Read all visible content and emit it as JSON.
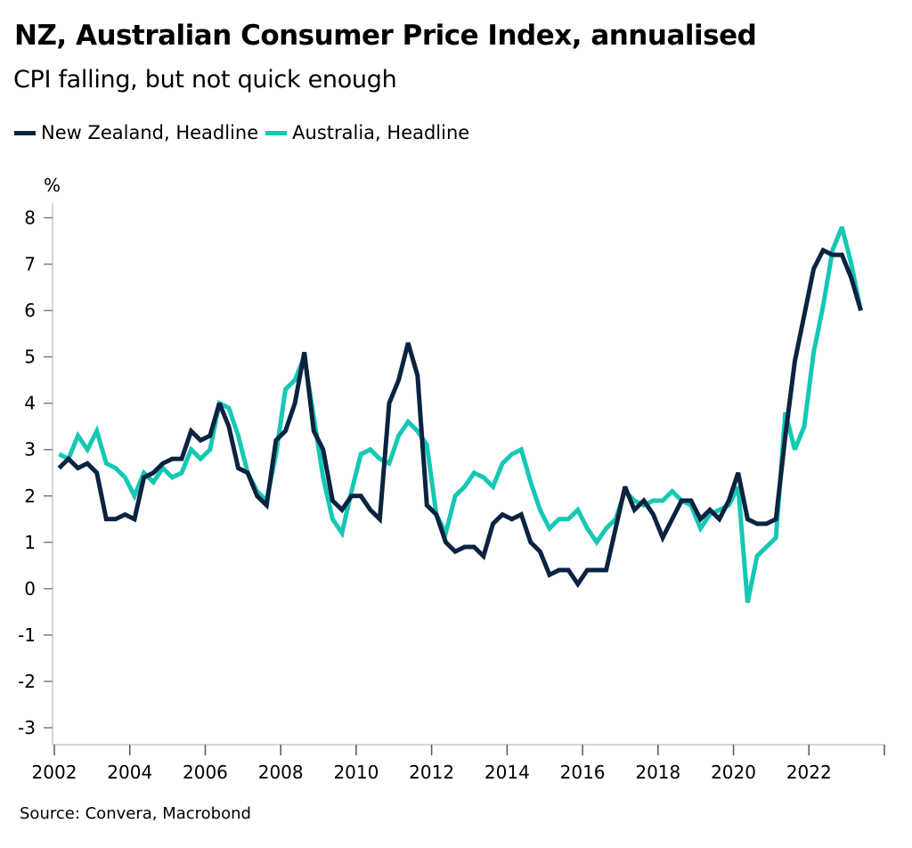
{
  "header": {
    "title": "NZ, Australian Consumer Price Index, annualised",
    "subtitle": "CPI falling, but not quick enough"
  },
  "footer": {
    "source": "Source: Convera, Macrobond"
  },
  "chart_data": {
    "type": "line",
    "title": "NZ, Australian Consumer Price Index, annualised",
    "subtitle": "CPI falling, but not quick enough",
    "xlabel": "",
    "ylabel": "%",
    "frequency": "quarterly",
    "x_start": "2002 Q1",
    "x_end": "2023 Q2",
    "xlim": [
      2002,
      2024
    ],
    "ylim": [
      -3,
      8
    ],
    "y_ticks": [
      "8",
      "7",
      "6",
      "5",
      "4",
      "3",
      "2",
      "1",
      "0",
      "-1",
      "-2",
      "-3"
    ],
    "y_tick_values": [
      8,
      7,
      6,
      5,
      4,
      3,
      2,
      1,
      0,
      -1,
      -2,
      -3
    ],
    "x_ticks": [
      "2002",
      "2004",
      "2006",
      "2008",
      "2010",
      "2012",
      "2014",
      "2016",
      "2018",
      "2020",
      "2022",
      ""
    ],
    "x_tick_values": [
      2002,
      2004,
      2006,
      2008,
      2010,
      2012,
      2014,
      2016,
      2018,
      2020,
      2022,
      2024
    ],
    "grid": false,
    "legend_position": "top-left",
    "series": [
      {
        "name": "New Zealand, Headline",
        "color": "#0b2340",
        "values": [
          2.6,
          2.8,
          2.6,
          2.7,
          2.5,
          1.5,
          1.5,
          1.6,
          1.5,
          2.4,
          2.5,
          2.7,
          2.8,
          2.8,
          3.4,
          3.2,
          3.3,
          4.0,
          3.5,
          2.6,
          2.5,
          2.0,
          1.8,
          3.2,
          3.4,
          4.0,
          5.1,
          3.4,
          3.0,
          1.9,
          1.7,
          2.0,
          2.0,
          1.7,
          1.5,
          4.0,
          4.5,
          5.3,
          4.6,
          1.8,
          1.6,
          1.0,
          0.8,
          0.9,
          0.9,
          0.7,
          1.4,
          1.6,
          1.5,
          1.6,
          1.0,
          0.8,
          0.3,
          0.4,
          0.4,
          0.1,
          0.4,
          0.4,
          0.4,
          1.3,
          2.2,
          1.7,
          1.9,
          1.6,
          1.1,
          1.5,
          1.9,
          1.9,
          1.5,
          1.7,
          1.5,
          1.9,
          2.5,
          1.5,
          1.4,
          1.4,
          1.5,
          3.3,
          4.9,
          5.9,
          6.9,
          7.3,
          7.2,
          7.2,
          6.7,
          6.0
        ]
      },
      {
        "name": "Australia, Headline",
        "color": "#14c8b4",
        "values": [
          2.9,
          2.8,
          3.3,
          3.0,
          3.4,
          2.7,
          2.6,
          2.4,
          2.0,
          2.5,
          2.3,
          2.6,
          2.4,
          2.5,
          3.0,
          2.8,
          3.0,
          4.0,
          3.9,
          3.3,
          2.5,
          2.1,
          1.9,
          2.9,
          4.3,
          4.5,
          5.0,
          3.7,
          2.4,
          1.5,
          1.2,
          2.1,
          2.9,
          3.0,
          2.8,
          2.7,
          3.3,
          3.6,
          3.4,
          3.1,
          1.6,
          1.2,
          2.0,
          2.2,
          2.5,
          2.4,
          2.2,
          2.7,
          2.9,
          3.0,
          2.3,
          1.7,
          1.3,
          1.5,
          1.5,
          1.7,
          1.3,
          1.0,
          1.3,
          1.5,
          2.1,
          1.9,
          1.8,
          1.9,
          1.9,
          2.1,
          1.9,
          1.8,
          1.3,
          1.6,
          1.7,
          1.8,
          2.2,
          -0.3,
          0.7,
          0.9,
          1.1,
          3.8,
          3.0,
          3.5,
          5.1,
          6.1,
          7.3,
          7.8,
          7.0,
          6.0
        ]
      }
    ]
  }
}
